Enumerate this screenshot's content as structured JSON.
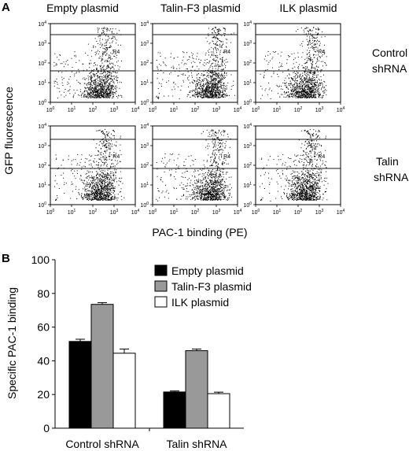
{
  "panel_a": {
    "label": "A",
    "column_titles": [
      "Empty plasmid",
      "Talin-F3 plasmid",
      "ILK plasmid"
    ],
    "row_titles": [
      [
        "Control",
        "shRNA"
      ],
      [
        "Talin",
        "shRNA"
      ]
    ],
    "y_axis_label": "GFP fluorescence",
    "x_axis_label": "PAC-1 binding (PE)",
    "gate_label": "R4",
    "tick_mantissa": "10",
    "tick_exponents": [
      "0",
      "1",
      "2",
      "3",
      "4"
    ]
  },
  "panel_b": {
    "label": "B"
  },
  "chart_data": [
    {
      "type": "scatter",
      "description_ref": "panel_a flow cytometry dot plots (2 rows x 3 columns)",
      "x_scale": "log",
      "y_scale": "log",
      "xlim": [
        1,
        10000
      ],
      "ylim": [
        1,
        10000
      ],
      "grid": false
    },
    {
      "type": "bar",
      "categories": [
        "Control shRNA",
        "Talin shRNA"
      ],
      "series": [
        {
          "name": "Empty plasmid",
          "values": [
            51.5,
            21.5
          ],
          "errors": [
            1.3,
            0.6
          ],
          "color": "#000000"
        },
        {
          "name": "Talin-F3 plasmid",
          "values": [
            73.5,
            46
          ],
          "errors": [
            1.0,
            1.0
          ],
          "color": "#999999"
        },
        {
          "name": "ILK plasmid",
          "values": [
            44.5,
            20.5
          ],
          "errors": [
            2.5,
            0.9
          ],
          "color": "#ffffff"
        }
      ],
      "ylabel": "Specific PAC-1 binding",
      "xlabel": "",
      "ylim": [
        0,
        100
      ],
      "yticks": [
        0,
        20,
        40,
        60,
        80,
        100
      ],
      "legend_position": "top-right",
      "grid": false
    }
  ]
}
